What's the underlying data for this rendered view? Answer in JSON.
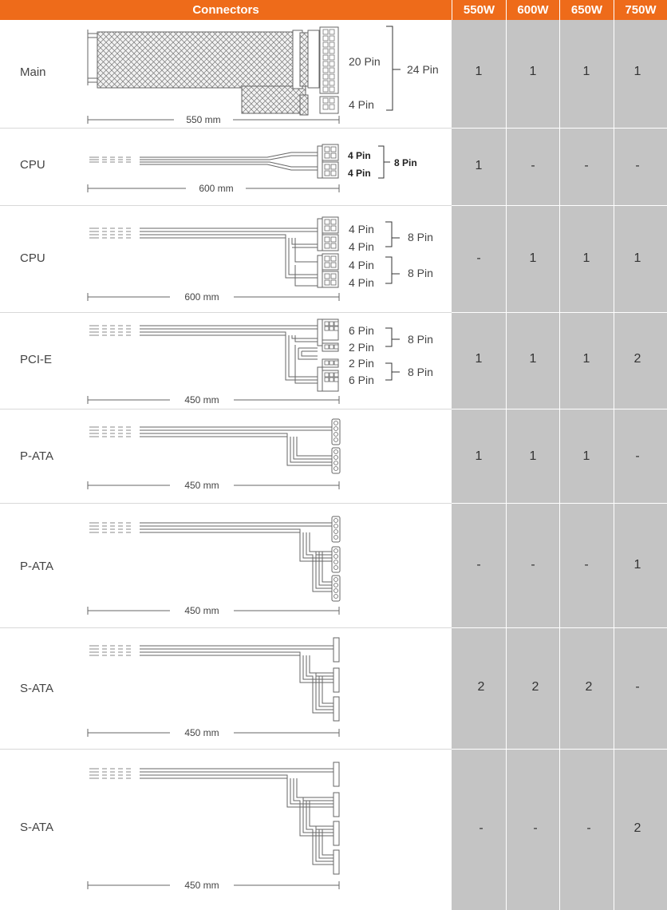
{
  "header": {
    "connectors": "Connectors",
    "models": [
      "550W",
      "600W",
      "650W",
      "750W"
    ]
  },
  "rows": [
    {
      "label": "Main",
      "length": "550 mm",
      "pins": [
        "20 Pin",
        "4 Pin"
      ],
      "total": "24 Pin",
      "values": [
        "1",
        "1",
        "1",
        "1"
      ]
    },
    {
      "label": "CPU",
      "length": "600 mm",
      "pins": [
        "4 Pin",
        "4 Pin"
      ],
      "total": "8 Pin",
      "values": [
        "1",
        "-",
        "-",
        "-"
      ]
    },
    {
      "label": "CPU",
      "length": "600 mm",
      "pins": [
        "4 Pin",
        "4 Pin",
        "4 Pin",
        "4 Pin"
      ],
      "totals": [
        "8 Pin",
        "8 Pin"
      ],
      "values": [
        "-",
        "1",
        "1",
        "1"
      ]
    },
    {
      "label": "PCI-E",
      "length": "450 mm",
      "pins": [
        "6 Pin",
        "2 Pin",
        "2 Pin",
        "6 Pin"
      ],
      "totals": [
        "8 Pin",
        "8 Pin"
      ],
      "values": [
        "1",
        "1",
        "1",
        "2"
      ]
    },
    {
      "label": "P-ATA",
      "length": "450 mm",
      "values": [
        "1",
        "1",
        "1",
        "-"
      ]
    },
    {
      "label": "P-ATA",
      "length": "450 mm",
      "values": [
        "-",
        "-",
        "-",
        "1"
      ]
    },
    {
      "label": "S-ATA",
      "length": "450 mm",
      "values": [
        "2",
        "2",
        "2",
        "-"
      ]
    },
    {
      "label": "S-ATA",
      "length": "450 mm",
      "values": [
        "-",
        "-",
        "-",
        "2"
      ]
    }
  ]
}
